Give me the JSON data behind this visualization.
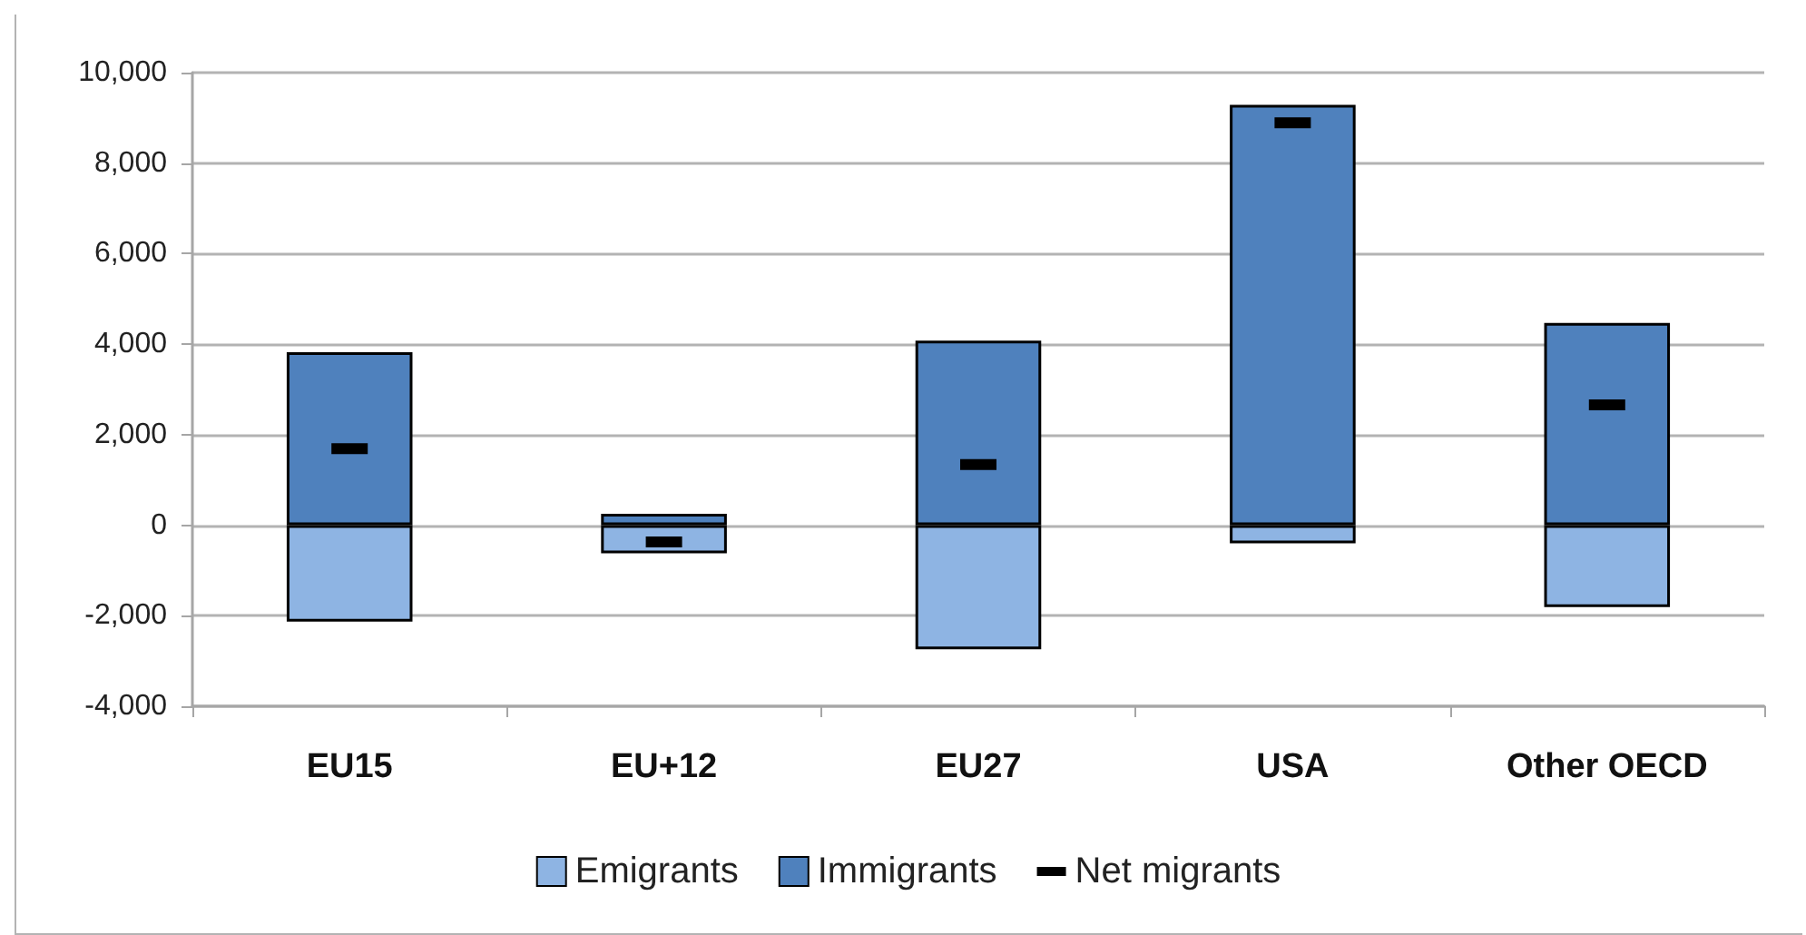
{
  "chart_data": {
    "type": "bar",
    "stacked": true,
    "categories": [
      "EU15",
      "EU+12",
      "EU27",
      "USA",
      "Other OECD"
    ],
    "series": [
      {
        "name": "Emigrants",
        "color": "#8eb4e3",
        "values": [
          -2130,
          -620,
          -2740,
          -400,
          -1810
        ]
      },
      {
        "name": "Immigrants",
        "color": "#4f81bd",
        "values": [
          3820,
          250,
          4080,
          9290,
          4470
        ]
      },
      {
        "name": "Net migrants",
        "type": "scatter",
        "color": "#000000",
        "values": [
          1690,
          -370,
          1340,
          8890,
          2660
        ]
      }
    ],
    "ylim": [
      -4000,
      10000
    ],
    "yticks": [
      {
        "value": -4000,
        "label": "-4,000"
      },
      {
        "value": -2000,
        "label": "-2,000"
      },
      0,
      {
        "value": 2000,
        "label": "2,000"
      },
      {
        "value": 4000,
        "label": "4,000"
      },
      {
        "value": 6000,
        "label": "6,000"
      },
      {
        "value": 8000,
        "label": "8,000"
      },
      {
        "value": 10000,
        "label": "10,000"
      }
    ],
    "grid": "y",
    "legend": "bottom",
    "marker": "square"
  }
}
